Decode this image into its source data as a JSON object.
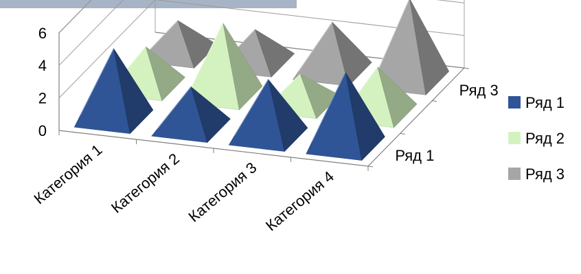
{
  "chart_data": {
    "type": "bar",
    "style": "3d-pyramid",
    "categories": [
      "Категория 1",
      "Категория 2",
      "Категория 3",
      "Категория 4"
    ],
    "series": [
      {
        "name": "Ряд 1",
        "values": [
          4.3,
          2.5,
          3.5,
          4.5
        ],
        "color": "#2f5597"
      },
      {
        "name": "Ряд 2",
        "values": [
          2.4,
          4.4,
          1.8,
          2.8
        ],
        "color": "#d4f2bf"
      },
      {
        "name": "Ряд 3",
        "values": [
          2.0,
          2.0,
          3.0,
          5.0
        ],
        "color": "#a6a6a6"
      }
    ],
    "depth_labels": [
      "Ряд 1",
      "Ряд 3"
    ],
    "yticks": [
      "0",
      "2",
      "4",
      "6"
    ],
    "ylim": [
      0,
      6
    ],
    "grid": true,
    "legend_position": "right"
  }
}
